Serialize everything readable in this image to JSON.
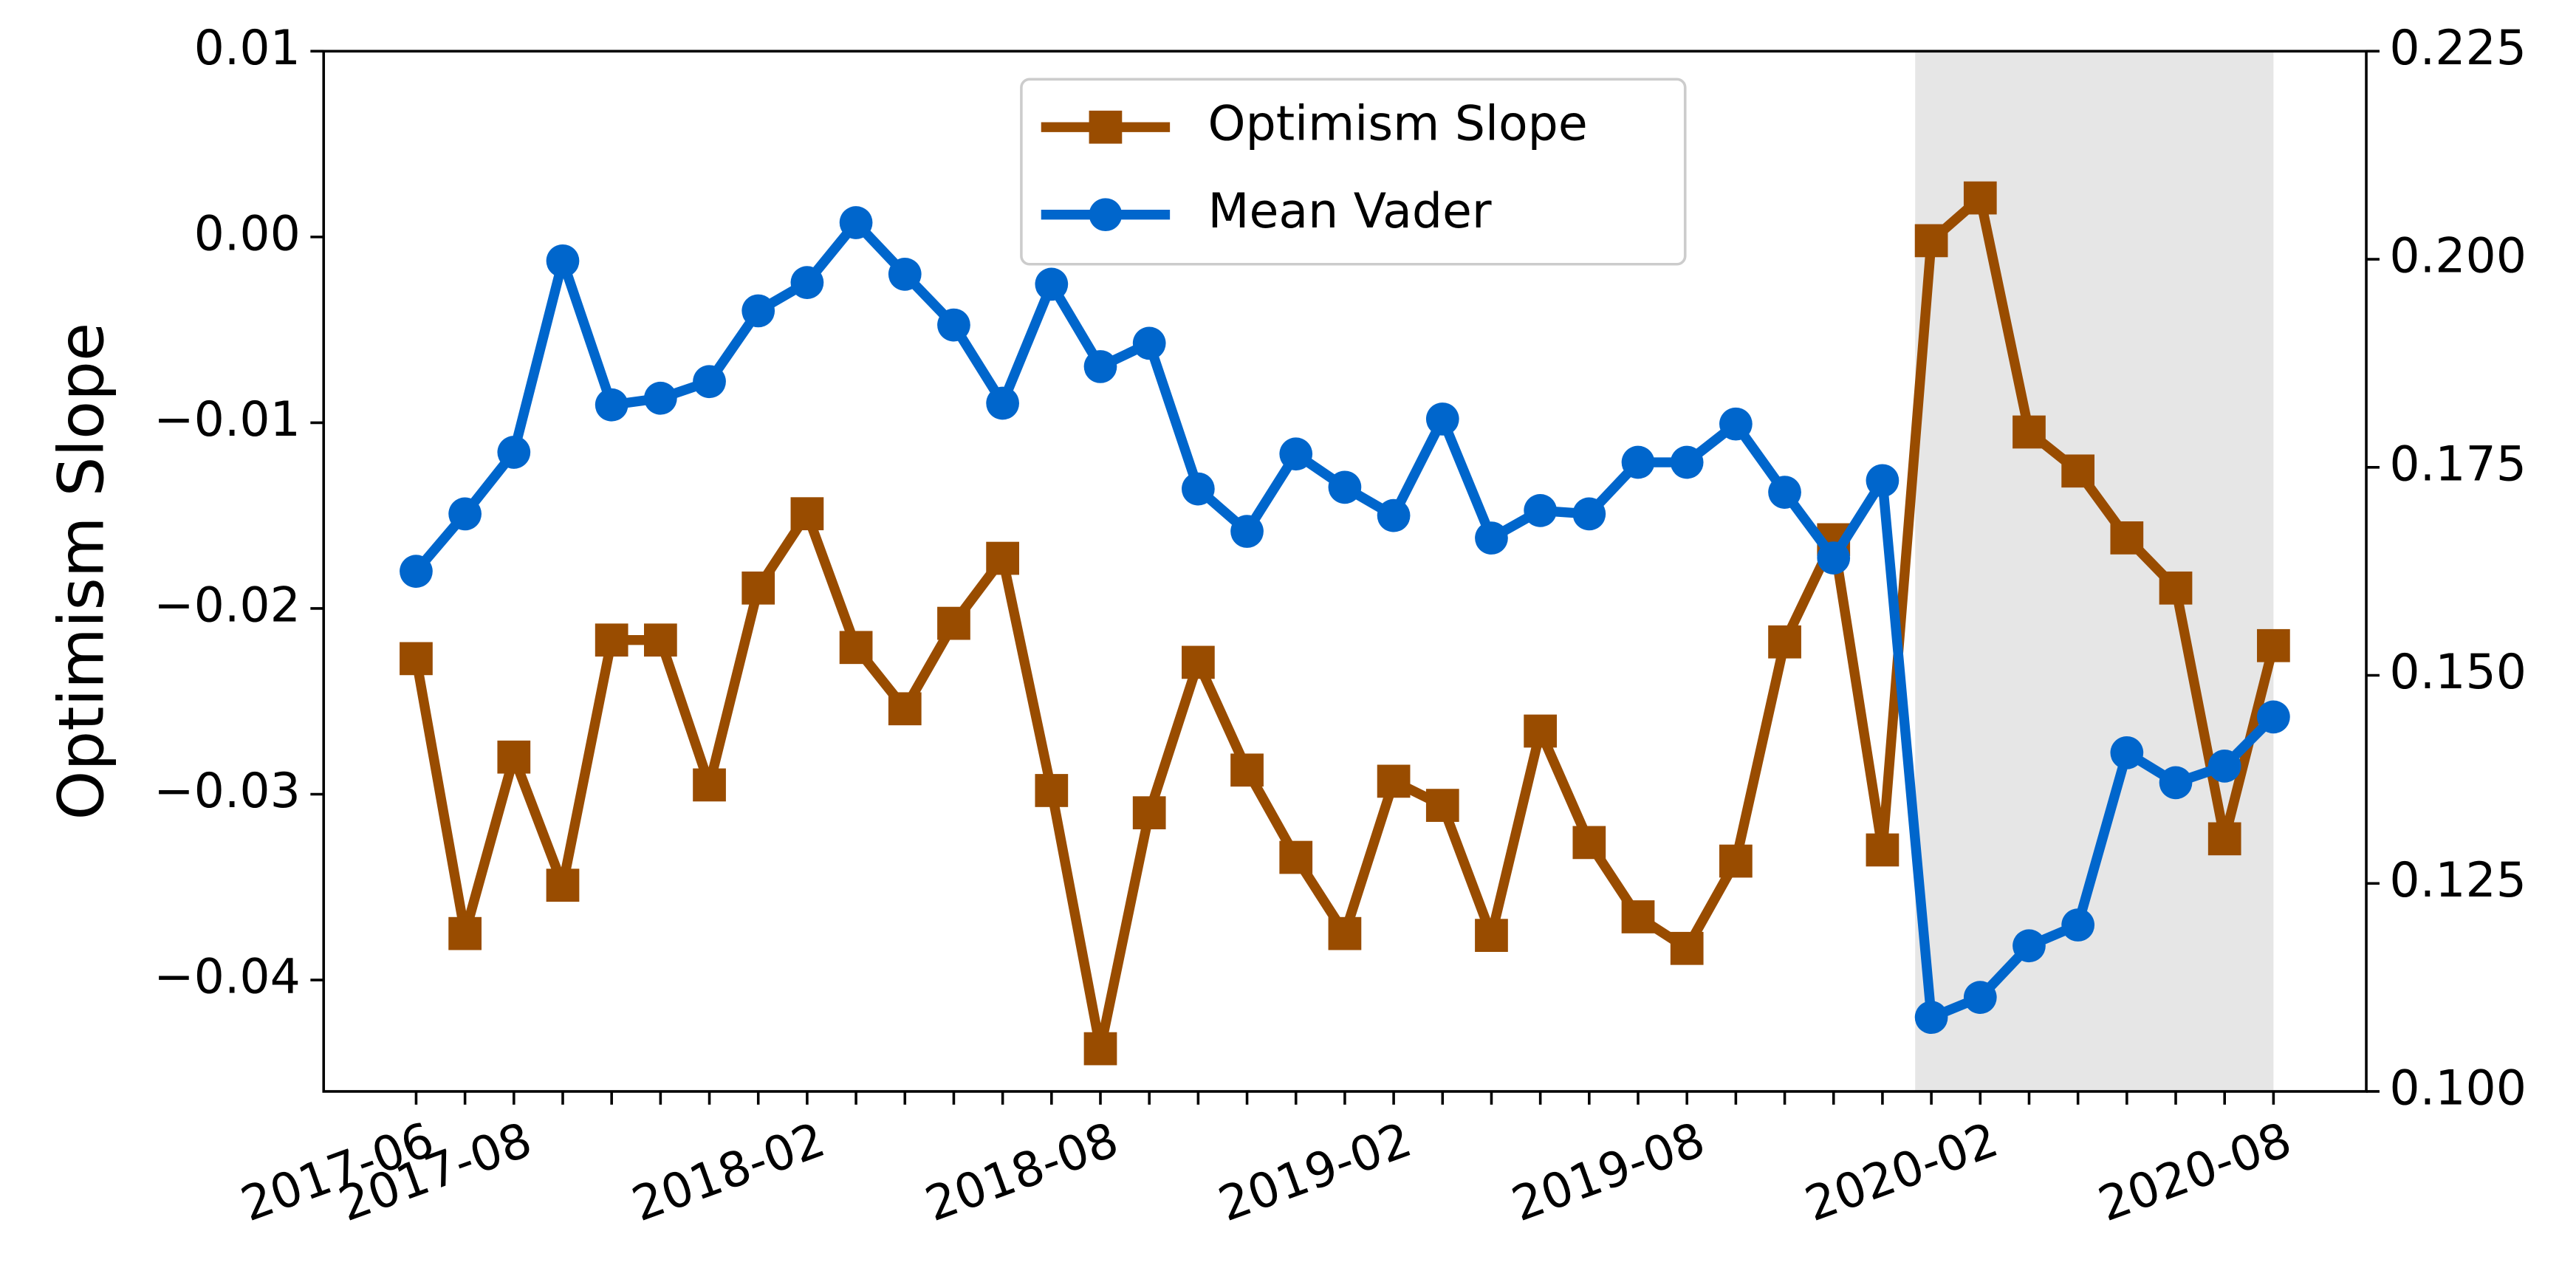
{
  "chart_data": {
    "type": "line",
    "y_label": "Optimism Slope",
    "categories": [
      "2017-06",
      null,
      "2017-08",
      null,
      null,
      null,
      null,
      null,
      "2018-02",
      null,
      null,
      null,
      null,
      null,
      "2018-08",
      null,
      null,
      null,
      null,
      null,
      "2019-02",
      null,
      null,
      null,
      null,
      null,
      "2019-08",
      null,
      null,
      null,
      null,
      null,
      "2020-02",
      null,
      null,
      null,
      null,
      null,
      "2020-08"
    ],
    "series": [
      {
        "name": "Optimism Slope",
        "color": "#994c00",
        "marker": "square",
        "axis": "y",
        "values": [
          -0.0227,
          -0.0375,
          -0.028,
          -0.0349,
          -0.0217,
          -0.0217,
          -0.0295,
          -0.0189,
          -0.0149,
          -0.0221,
          -0.0254,
          -0.0208,
          -0.0173,
          -0.0298,
          -0.0437,
          -0.031,
          -0.0229,
          -0.0287,
          -0.0334,
          -0.0375,
          -0.0293,
          -0.0306,
          -0.0376,
          -0.0266,
          -0.0326,
          -0.0366,
          -0.0383,
          -0.0336,
          -0.0218,
          -0.0163,
          -0.033,
          -0.0002,
          0.0021,
          -0.0105,
          -0.0126,
          -0.0162,
          -0.0189,
          -0.0324,
          -0.022
        ]
      },
      {
        "name": "Mean Vader",
        "color": "#0066cc",
        "marker": "circle",
        "axis": "y2",
        "values": [
          0.1625,
          0.1694,
          0.1768,
          0.1998,
          0.1825,
          0.1833,
          0.1853,
          0.1938,
          0.1972,
          0.2044,
          0.1982,
          0.1921,
          0.1827,
          0.197,
          0.1871,
          0.1899,
          0.1724,
          0.1673,
          0.1766,
          0.1726,
          0.1692,
          0.1808,
          0.1665,
          0.1698,
          0.1694,
          0.1756,
          0.1756,
          0.1802,
          0.172,
          0.1641,
          0.1734,
          0.1089,
          0.1113,
          0.1175,
          0.12,
          0.1407,
          0.1371,
          0.1391,
          0.145
        ]
      }
    ],
    "ylim": [
      -0.046,
      0.01
    ],
    "yticks": [
      {
        "value": 0.01,
        "label": "0.01"
      },
      {
        "value": 0.0,
        "label": "0.00"
      },
      {
        "value": -0.01,
        "label": "−0.01"
      },
      {
        "value": -0.02,
        "label": "−0.02"
      },
      {
        "value": -0.03,
        "label": "−0.03"
      },
      {
        "value": -0.04,
        "label": "−0.04"
      }
    ],
    "y2lim": [
      0.1,
      0.225
    ],
    "y2ticks": [
      {
        "value": 0.1,
        "label": "0.100"
      },
      {
        "value": 0.125,
        "label": "0.125"
      },
      {
        "value": 0.15,
        "label": "0.150"
      },
      {
        "value": 0.175,
        "label": "0.175"
      },
      {
        "value": 0.2,
        "label": "0.200"
      },
      {
        "value": 0.225,
        "label": "0.225"
      }
    ],
    "shaded_span": [
      "2020-01",
      "2020-08"
    ],
    "shade_color": "#e6e6e6",
    "legend": "upper center",
    "grid": false
  }
}
